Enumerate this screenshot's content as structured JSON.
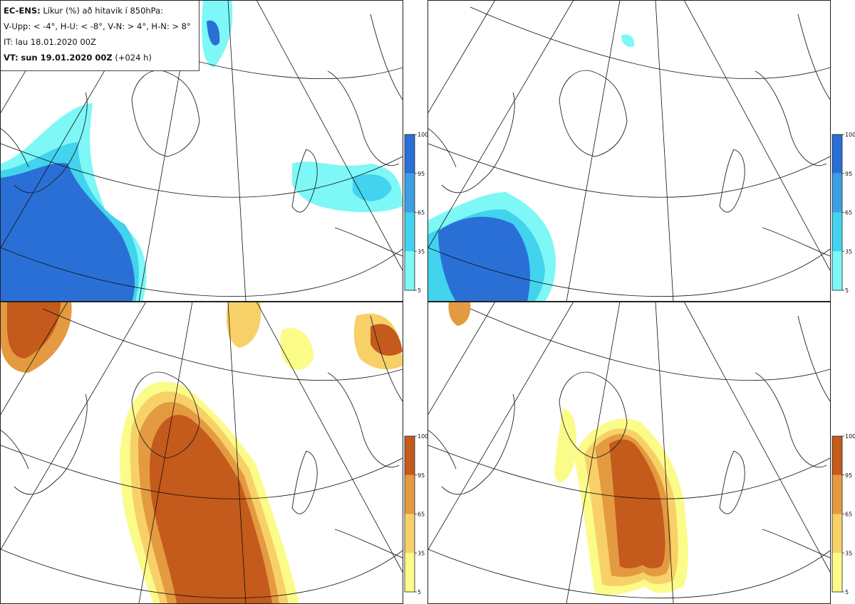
{
  "header": {
    "model": "EC-ENS:",
    "title_rest": "Líkur (%) að hitavik í 850hPa:",
    "thresholds": "V-Upp: < -4°, H-U: < -8°, V-N: > 4°, H-N: > 8°",
    "issue_time": "IT: lau 18.01.2020 00Z",
    "valid_prefix": "VT:",
    "valid_time": "sun 19.01.2020 00Z",
    "lead_time": "(+024 h)"
  },
  "panels": [
    {
      "id": "cold-4",
      "label": "V-Upp: < -4°",
      "palette": "blue"
    },
    {
      "id": "cold-8",
      "label": "H-U: < -8°",
      "palette": "blue"
    },
    {
      "id": "warm-4",
      "label": "V-N: > 4°",
      "palette": "orange"
    },
    {
      "id": "warm-8",
      "label": "H-N: > 8°",
      "palette": "orange"
    }
  ],
  "colorbar": {
    "levels": [
      "5",
      "35",
      "65",
      "95",
      "100"
    ],
    "blue_colors": [
      "#7ef7f7",
      "#42d3ee",
      "#3c9fe3",
      "#2a6fd6"
    ],
    "orange_colors": [
      "#fbfb8a",
      "#f7d167",
      "#e49a40",
      "#c45a1c"
    ]
  }
}
